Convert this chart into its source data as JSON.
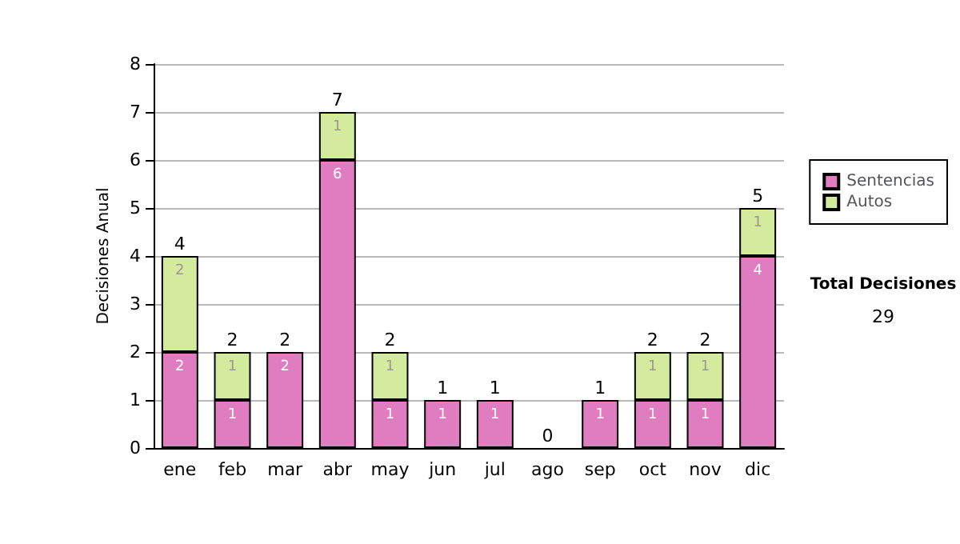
{
  "chart_data": {
    "type": "bar",
    "ylabel": "Decisiones Anual",
    "stacked": true,
    "categories": [
      "ene",
      "feb",
      "mar",
      "abr",
      "may",
      "jun",
      "jul",
      "ago",
      "sep",
      "oct",
      "nov",
      "dic"
    ],
    "series": [
      {
        "name": "Sentencias",
        "color": "#e07cc0",
        "values": [
          2,
          1,
          2,
          6,
          1,
          1,
          1,
          0,
          1,
          1,
          1,
          4
        ],
        "value_labels": [
          "2",
          "1",
          "2",
          "6",
          "1",
          "1",
          "1",
          null,
          "1",
          "1",
          "1",
          "4"
        ]
      },
      {
        "name": "Autos",
        "color": "#d4ea9c",
        "values": [
          2,
          1,
          0,
          1,
          1,
          0,
          0,
          0,
          0,
          1,
          1,
          1
        ],
        "value_labels": [
          "2",
          "1",
          null,
          "1",
          "1",
          null,
          null,
          null,
          null,
          "1",
          "1",
          "1"
        ]
      }
    ],
    "totals": [
      "4",
      "2",
      "2",
      "7",
      "2",
      "1",
      "1",
      "0",
      "1",
      "2",
      "2",
      "5"
    ],
    "ylim": [
      0,
      8
    ],
    "yticks": [
      0,
      1,
      2,
      3,
      4,
      5,
      6,
      7,
      8
    ],
    "grid": "y",
    "legend": "right",
    "annotations": [
      "Total Decisiones",
      "29"
    ]
  }
}
